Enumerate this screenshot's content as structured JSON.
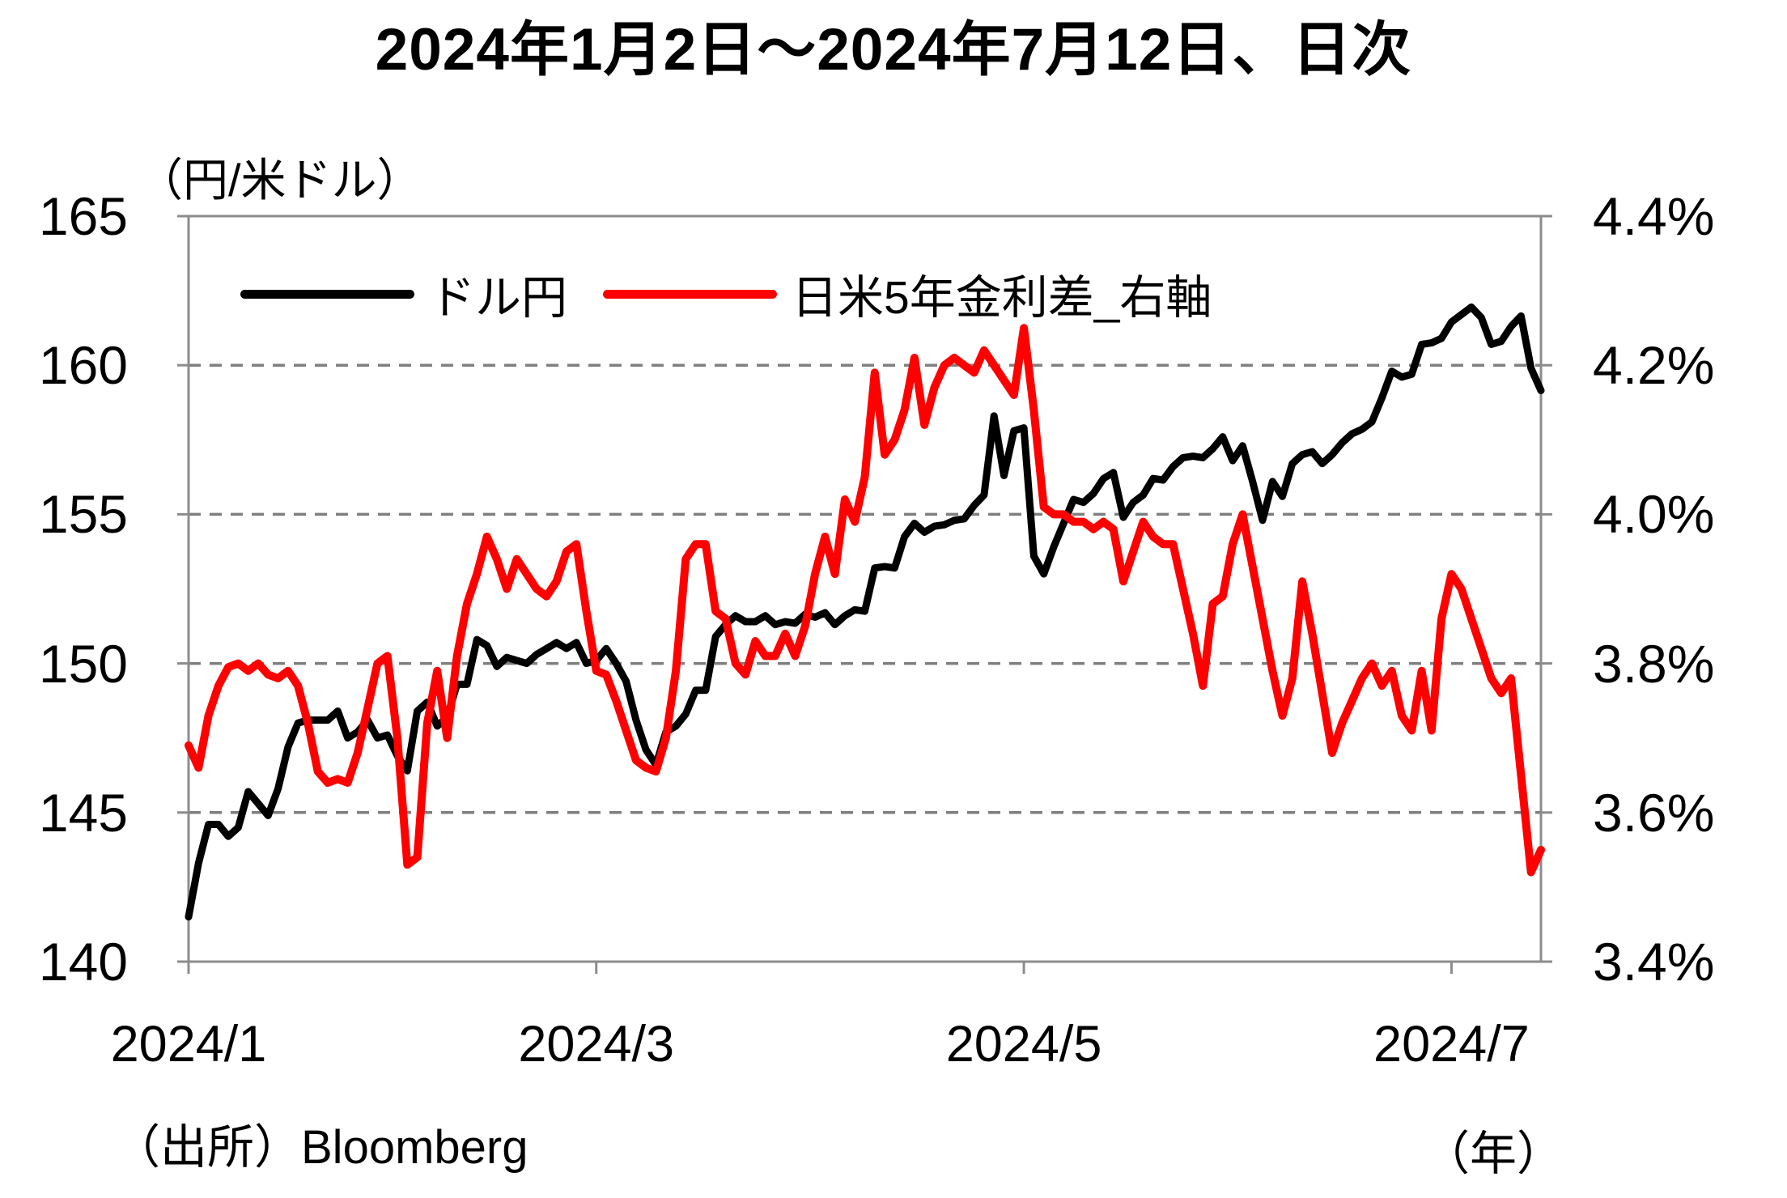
{
  "title": "2024年1月2日～2024年7月12日、日次",
  "source_label": "（出所）Bloomberg",
  "left_axis": {
    "unit_label": "（円/米ドル）",
    "tick_labels": [
      "165",
      "160",
      "155",
      "150",
      "145",
      "140"
    ],
    "tick_values": [
      165,
      160,
      155,
      150,
      145,
      140
    ]
  },
  "right_axis": {
    "tick_labels": [
      "4.4%",
      "4.2%",
      "4.0%",
      "3.8%",
      "3.6%",
      "3.4%"
    ],
    "tick_values": [
      4.4,
      4.2,
      4.0,
      3.8,
      3.6,
      3.4
    ]
  },
  "x_axis": {
    "tick_labels": [
      "2024/1",
      "2024/3",
      "2024/5",
      "2024/7"
    ],
    "tick_indices": [
      0,
      41,
      84,
      127
    ],
    "unit_label": "（年）"
  },
  "colors": {
    "usdjpy_line": "#000000",
    "rate_diff_line": "#ff0000",
    "axis_gray": "#8c8c8c",
    "grid_gray": "#7f7f7f"
  },
  "chart_data": {
    "type": "line",
    "title": "2024年1月2日～2024年7月12日、日次",
    "x_note": "daily trading days 2024-01-02 .. 2024-07-12",
    "left_ylim": [
      140,
      165
    ],
    "right_ylim": [
      3.4,
      4.4
    ],
    "grid": "horizontal-dashed",
    "legend_position": "top-inside",
    "series": [
      {
        "name": "ドル円",
        "axis": "left",
        "color": "#000000",
        "values": [
          141.5,
          143.3,
          144.6,
          144.6,
          144.2,
          144.5,
          145.7,
          145.3,
          144.9,
          145.8,
          147.2,
          148.0,
          148.1,
          148.1,
          148.1,
          148.4,
          147.5,
          147.7,
          148.1,
          147.5,
          147.6,
          146.9,
          146.4,
          148.4,
          148.7,
          147.9,
          148.2,
          149.3,
          149.3,
          150.8,
          150.6,
          149.9,
          150.2,
          150.1,
          150.0,
          150.3,
          150.5,
          150.7,
          150.5,
          150.7,
          150.0,
          150.1,
          150.5,
          150.0,
          149.4,
          148.1,
          147.1,
          146.6,
          147.7,
          147.9,
          148.3,
          149.1,
          149.1,
          150.9,
          151.3,
          151.6,
          151.4,
          151.4,
          151.6,
          151.3,
          151.4,
          151.35,
          151.65,
          151.55,
          151.7,
          151.3,
          151.6,
          151.8,
          151.75,
          153.2,
          153.25,
          153.2,
          154.25,
          154.7,
          154.4,
          154.6,
          154.65,
          154.8,
          154.85,
          155.3,
          155.65,
          158.3,
          156.3,
          157.8,
          157.9,
          153.6,
          153.0,
          153.9,
          154.7,
          155.5,
          155.4,
          155.7,
          156.2,
          156.4,
          154.9,
          155.4,
          155.65,
          156.2,
          156.15,
          156.6,
          156.9,
          156.95,
          156.9,
          157.2,
          157.6,
          156.8,
          157.3,
          156.1,
          154.8,
          156.1,
          155.6,
          156.7,
          157.0,
          157.1,
          156.7,
          157.0,
          157.4,
          157.7,
          157.85,
          158.1,
          158.9,
          159.8,
          159.6,
          159.7,
          160.7,
          160.75,
          160.9,
          161.45,
          161.7,
          161.95,
          161.6,
          160.7,
          160.8,
          161.3,
          161.65,
          159.9,
          159.15
        ]
      },
      {
        "name": "日米5年金利差_右軸",
        "axis": "right",
        "color": "#ff0000",
        "values": [
          3.69,
          3.66,
          3.73,
          3.77,
          3.795,
          3.8,
          3.79,
          3.8,
          3.785,
          3.78,
          3.79,
          3.77,
          3.72,
          3.655,
          3.64,
          3.645,
          3.64,
          3.68,
          3.74,
          3.8,
          3.81,
          3.7,
          3.53,
          3.54,
          3.72,
          3.79,
          3.7,
          3.81,
          3.88,
          3.92,
          3.97,
          3.94,
          3.9,
          3.94,
          3.92,
          3.9,
          3.89,
          3.91,
          3.95,
          3.96,
          3.87,
          3.79,
          3.785,
          3.75,
          3.71,
          3.67,
          3.66,
          3.655,
          3.7,
          3.79,
          3.94,
          3.96,
          3.96,
          3.87,
          3.86,
          3.8,
          3.785,
          3.83,
          3.81,
          3.81,
          3.84,
          3.81,
          3.85,
          3.92,
          3.97,
          3.92,
          4.02,
          3.99,
          4.05,
          4.19,
          4.08,
          4.1,
          4.14,
          4.21,
          4.12,
          4.17,
          4.2,
          4.21,
          4.2,
          4.19,
          4.22,
          4.2,
          4.18,
          4.16,
          4.25,
          4.14,
          4.01,
          4.0,
          4.0,
          3.99,
          3.99,
          3.98,
          3.99,
          3.98,
          3.91,
          3.95,
          3.99,
          3.97,
          3.96,
          3.96,
          3.9,
          3.84,
          3.77,
          3.88,
          3.89,
          3.96,
          4.0,
          3.93,
          3.86,
          3.79,
          3.73,
          3.78,
          3.91,
          3.84,
          3.76,
          3.68,
          3.72,
          3.75,
          3.78,
          3.8,
          3.77,
          3.79,
          3.73,
          3.71,
          3.79,
          3.71,
          3.86,
          3.92,
          3.9,
          3.86,
          3.82,
          3.78,
          3.76,
          3.78,
          3.65,
          3.52,
          3.55
        ]
      }
    ]
  }
}
